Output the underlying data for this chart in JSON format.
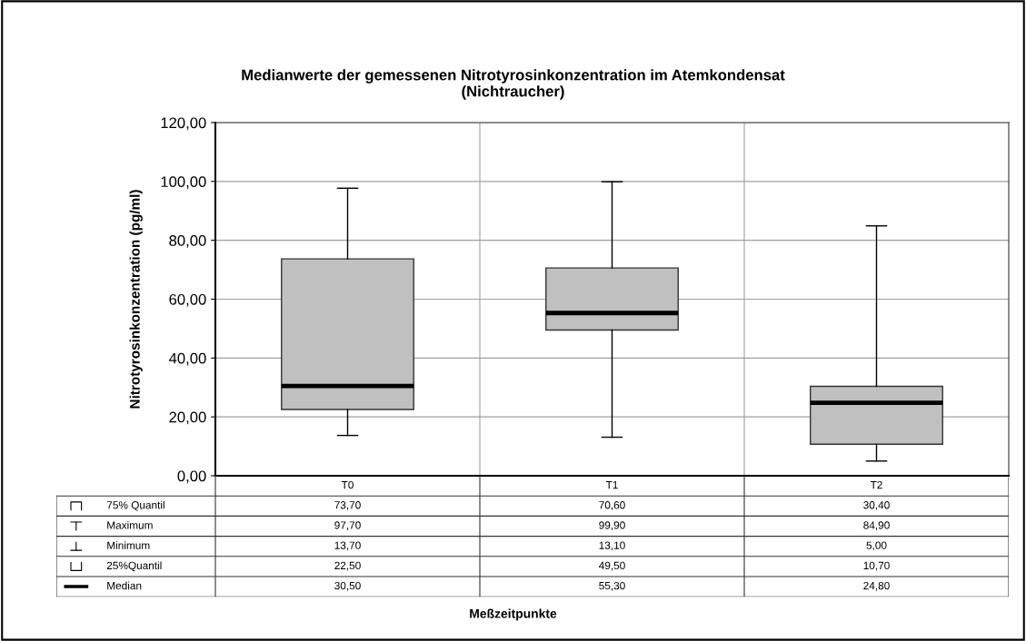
{
  "chart_data": {
    "type": "box",
    "title": "Medianwerte der gemessenen Nitrotyrosinkonzentration im Atemkondensat\n(Nichtraucher)",
    "ylabel": "Nitrotyrosinkonzentration (pg/ml)",
    "categories": [
      "T0",
      "T1",
      "T2"
    ],
    "boxes": [
      {
        "low": 13.7,
        "q1": 22.5,
        "median": 30.5,
        "q3": 73.7,
        "high": 97.7
      },
      {
        "low": 13.1,
        "q1": 49.5,
        "median": 55.3,
        "q3": 70.6,
        "high": 99.9
      },
      {
        "low": 5.0,
        "q1": 10.7,
        "median": 24.8,
        "q3": 30.4,
        "high": 84.9
      }
    ],
    "color": "#c0c0c0",
    "ylim": [
      0,
      120
    ],
    "yticks": [
      {
        "value": 0,
        "label": "0,00"
      },
      {
        "value": 20,
        "label": "20,00"
      },
      {
        "value": 40,
        "label": "40,00"
      },
      {
        "value": 60,
        "label": "60,00"
      },
      {
        "value": 80,
        "label": "80,00"
      },
      {
        "value": 100,
        "label": "100,00"
      },
      {
        "value": 120,
        "label": "120,00"
      }
    ],
    "grid": true,
    "cell_labels": [
      [
        "73,70",
        "70,60",
        "30,40"
      ],
      [
        "97,70",
        "99,90",
        "84,90"
      ],
      [
        "13,70",
        "13,10",
        "5,00"
      ],
      [
        "22,50",
        "49,50",
        "10,70"
      ],
      [
        "30,50",
        "55,30",
        "24,80"
      ]
    ],
    "annotations": [
      "75% Quantil",
      "Maximum",
      "Minimum",
      "25%Quantil",
      "Median",
      "Meßzeitpunkte"
    ]
  }
}
